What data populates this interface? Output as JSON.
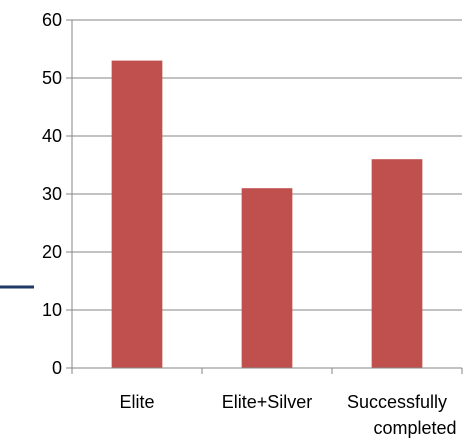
{
  "chart_data": {
    "type": "bar",
    "categories": [
      "Elite",
      "Elite+Silver",
      "Successfully completed"
    ],
    "category_lines": [
      [
        "Elite"
      ],
      [
        "Elite+Silver"
      ],
      [
        "Successfully",
        "completed"
      ]
    ],
    "values": [
      53,
      31,
      36
    ],
    "ylim": [
      0,
      60
    ],
    "yticks": [
      0,
      10,
      20,
      30,
      40,
      50,
      60
    ],
    "grid": true,
    "legend": "none",
    "title": "",
    "xlabel": "",
    "ylabel": ""
  },
  "colors": {
    "bar": "#c0504d",
    "grid": "#868686",
    "axis": "#868686",
    "marker": "#1f3864"
  }
}
